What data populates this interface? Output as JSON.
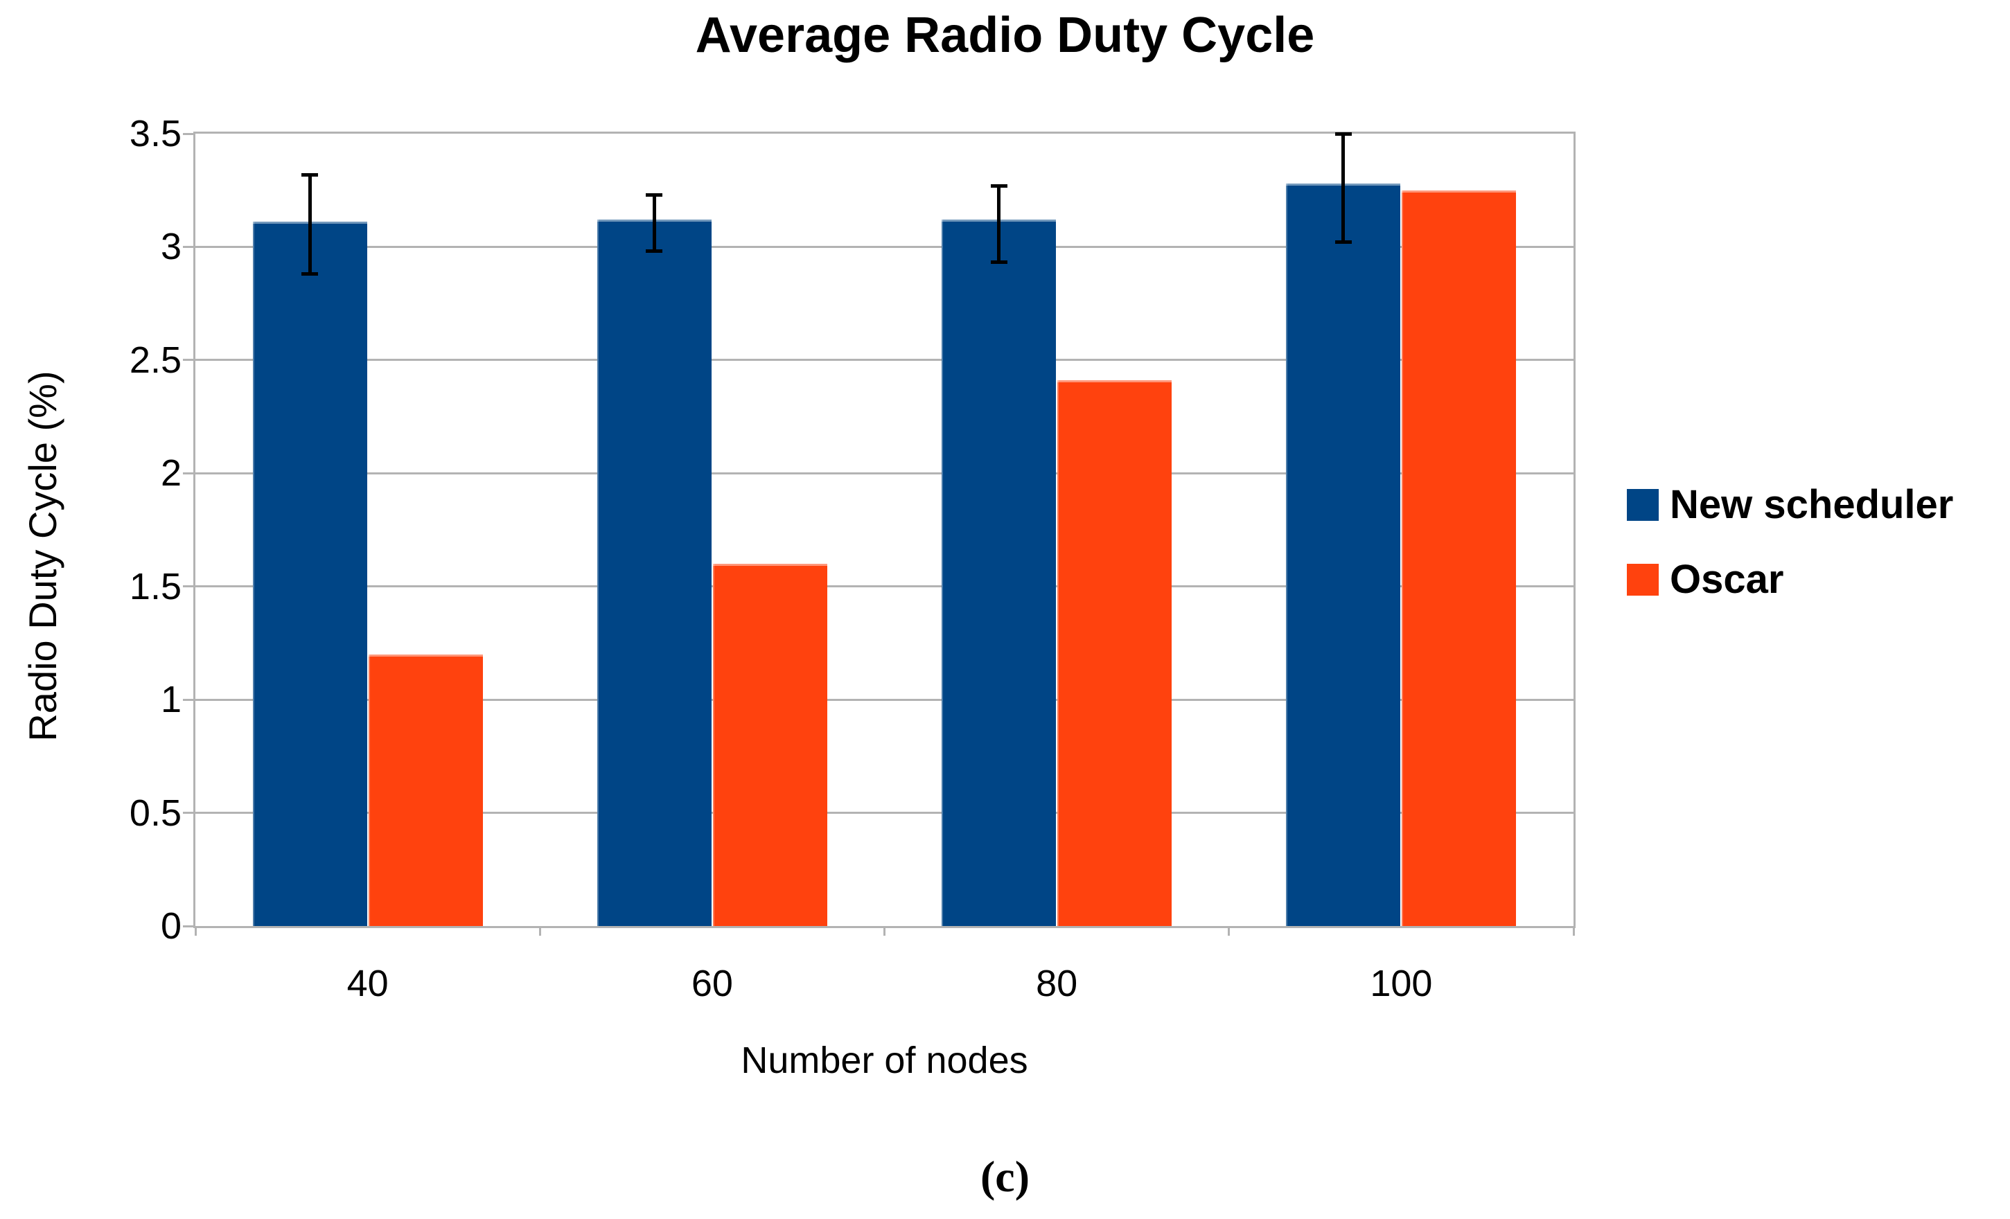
{
  "page": {
    "caption": "(c)"
  },
  "chart_data": {
    "type": "bar",
    "title": "Average Radio Duty Cycle",
    "xlabel": "Number of nodes",
    "ylabel": "Radio Duty Cycle (%)",
    "categories": [
      "40",
      "60",
      "80",
      "100"
    ],
    "series": [
      {
        "name": "New scheduler",
        "color": "#004586",
        "values": [
          3.11,
          3.12,
          3.12,
          3.28
        ],
        "error_low": [
          2.88,
          2.98,
          2.93,
          3.02
        ],
        "error_high": [
          3.32,
          3.23,
          3.27,
          3.5
        ]
      },
      {
        "name": "Oscar",
        "color": "#FF420E",
        "values": [
          1.2,
          1.6,
          2.41,
          3.25
        ]
      }
    ],
    "ylim": [
      0,
      3.5
    ],
    "yticks": [
      0,
      0.5,
      1,
      1.5,
      2,
      2.5,
      3,
      3.5
    ],
    "grid": true,
    "legend_position": "right",
    "error_bar_color": "#000000",
    "gridline_color": "#b3b3b3"
  }
}
